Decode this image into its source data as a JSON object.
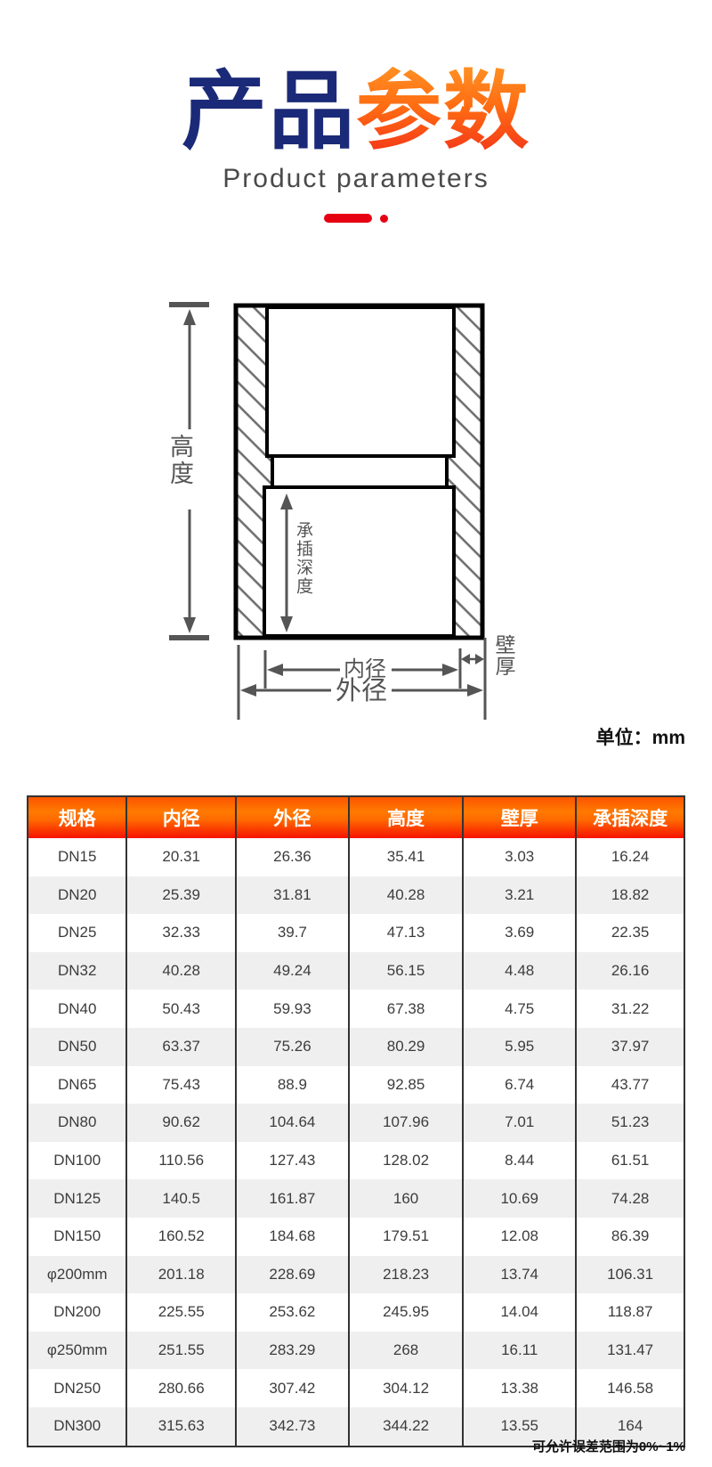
{
  "title": {
    "part1": "产品",
    "part2": "参数",
    "subtitle": "Product parameters"
  },
  "unit_label": "单位：mm",
  "diagram": {
    "height_label": "高度",
    "socket_depth_label": "承插深度",
    "inner_diameter_label": "内径",
    "outer_diameter_label": "外径",
    "wall_thickness_label": "壁厚"
  },
  "table": {
    "columns": [
      "规格",
      "内径",
      "外径",
      "高度",
      "壁厚",
      "承插深度"
    ],
    "rows": [
      [
        "DN15",
        "20.31",
        "26.36",
        "35.41",
        "3.03",
        "16.24"
      ],
      [
        "DN20",
        "25.39",
        "31.81",
        "40.28",
        "3.21",
        "18.82"
      ],
      [
        "DN25",
        "32.33",
        "39.7",
        "47.13",
        "3.69",
        "22.35"
      ],
      [
        "DN32",
        "40.28",
        "49.24",
        "56.15",
        "4.48",
        "26.16"
      ],
      [
        "DN40",
        "50.43",
        "59.93",
        "67.38",
        "4.75",
        "31.22"
      ],
      [
        "DN50",
        "63.37",
        "75.26",
        "80.29",
        "5.95",
        "37.97"
      ],
      [
        "DN65",
        "75.43",
        "88.9",
        "92.85",
        "6.74",
        "43.77"
      ],
      [
        "DN80",
        "90.62",
        "104.64",
        "107.96",
        "7.01",
        "51.23"
      ],
      [
        "DN100",
        "110.56",
        "127.43",
        "128.02",
        "8.44",
        "61.51"
      ],
      [
        "DN125",
        "140.5",
        "161.87",
        "160",
        "10.69",
        "74.28"
      ],
      [
        "DN150",
        "160.52",
        "184.68",
        "179.51",
        "12.08",
        "86.39"
      ],
      [
        "φ200mm",
        "201.18",
        "228.69",
        "218.23",
        "13.74",
        "106.31"
      ],
      [
        "DN200",
        "225.55",
        "253.62",
        "245.95",
        "14.04",
        "118.87"
      ],
      [
        "φ250mm",
        "251.55",
        "283.29",
        "268",
        "16.11",
        "131.47"
      ],
      [
        "DN250",
        "280.66",
        "307.42",
        "304.12",
        "13.38",
        "146.58"
      ],
      [
        "DN300",
        "315.63",
        "342.73",
        "344.22",
        "13.55",
        "164"
      ]
    ]
  },
  "footer_note": "可允许误差范围为0%~1%",
  "colors": {
    "title_blue": "#1b2a78",
    "title_orange_top": "#ff9224",
    "title_orange_bottom": "#f2301a",
    "accent_red": "#e60012",
    "header_gradient_top": "#ff7a00",
    "header_gradient_bottom": "#f71200",
    "row_alt": "#efefef",
    "dim_gray": "#555555"
  }
}
